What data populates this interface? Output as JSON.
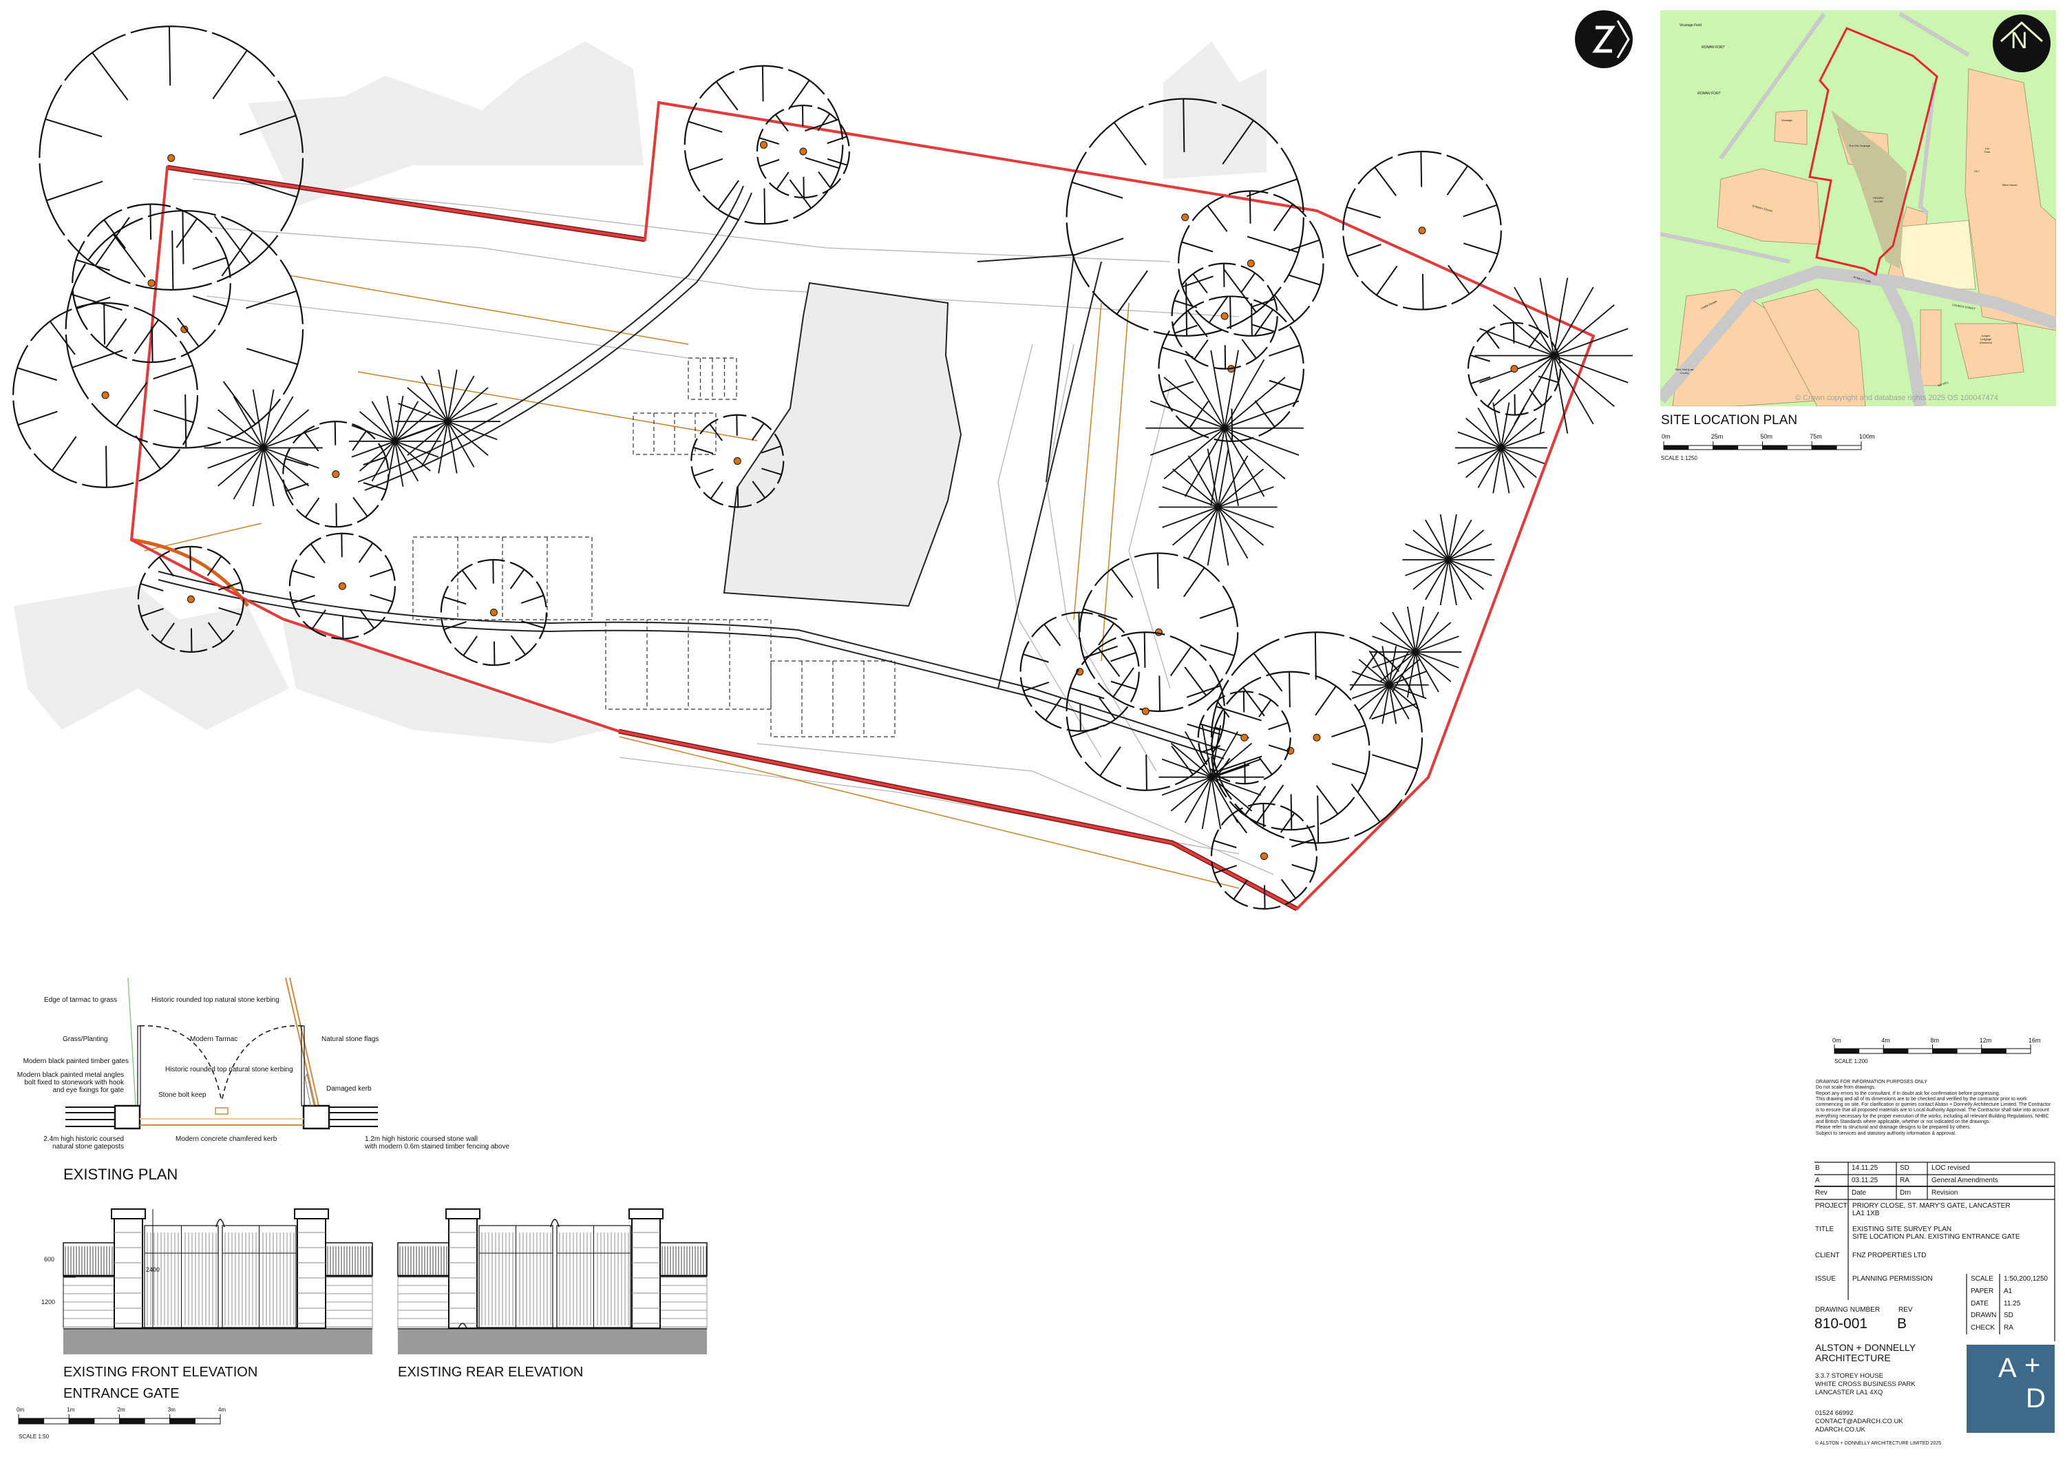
{
  "site_location_plan": {
    "title": "SITE LOCATION PLAN",
    "scale_label": "SCALE  1:1250",
    "scale_ticks": [
      "0m",
      "25m",
      "50m",
      "75m",
      "100m"
    ],
    "copyright": "© Crown copyright and database rights 2025 OS 100047474",
    "north_label": "N",
    "map_labels": {
      "vicarage_field": "Vicarage Field",
      "roman_fort_1": "ROMAN FORT",
      "roman_fort_2": "ROMAN FORT",
      "vicarage": "Vicarage",
      "old_vicarage": "The Old Vicarage",
      "st_marys_church": "St Mary's Church",
      "priory_close": "PRIORY CLOSE",
      "car_park": "Car Park",
      "ulc": "ULC",
      "mitre_house": "Mitre House",
      "st_marys_gate": "St Mary's Gate",
      "castle_parade": "Castle Parade",
      "church_street": "CHURCH STREET",
      "judges_lodgings": "Judges' Lodgings (Museum)",
      "shire_hall": "Shire Hall (Law Courts)",
      "nip_hill": "NIP HILL"
    },
    "colors": {
      "grass": "#ccf5b0",
      "building": "#fcd3a6",
      "road": "#c9c9c9",
      "track": "#c8c49a",
      "boundary": "#e8262b"
    }
  },
  "survey_plan": {
    "north_label": "N",
    "colors": {
      "boundary": "#e23b3b",
      "wall": "#7a1a1a",
      "tree_center": "#d8730f",
      "level": "#c8832a",
      "building": "#ececec"
    }
  },
  "existing_plan": {
    "title": "EXISTING PLAN",
    "labels": {
      "edge_tarmac": "Edge of tarmac to grass",
      "kerbing_top": "Historic rounded top natural stone kerbing",
      "grass_planting": "Grass/Planting",
      "modern_tarmac": "Modern Tarmac",
      "stone_flags": "Natural stone flags",
      "timber_gates": "Modern black painted timber gates",
      "metal_angles": [
        "Modern black painted metal angles",
        "bolt fixed to stonework with hook",
        "and eye fixings for gate"
      ],
      "kerbing_mid": "Historic rounded top natural stone kerbing",
      "bolt_keep": "Stone bolt keep",
      "damaged_kerb": "Damaged kerb",
      "gateposts": [
        "2.4m high historic coursed",
        "natural stone gateposts"
      ],
      "concrete_kerb": "Modern concrete chamfered kerb",
      "stone_wall": [
        "1.2m high historic coursed stone wall",
        "with modern 0.6m stained timber fencing above"
      ]
    }
  },
  "elevations": {
    "front_title": "EXISTING FRONT ELEVATION",
    "subtitle": "ENTRANCE GATE",
    "rear_title": "EXISTING REAR ELEVATION",
    "dims": {
      "fence": "600",
      "wall": "1200",
      "post": "2400"
    },
    "scale_label": "SCALE  1:50",
    "scale_ticks": [
      "0m",
      "1m",
      "2m",
      "3m",
      "4m"
    ]
  },
  "title_block": {
    "scale_ticks": [
      "0m",
      "4m",
      "8m",
      "12m",
      "16m"
    ],
    "scale_label": "SCALE  1:200",
    "notes": [
      "DRAWING FOR INFORMATION PURPOSES ONLY",
      "Do not scale from drawings.",
      "Report any errors to the consultant. If in doubt ask for confirmation before progressing.",
      "This drawing and all of its dimensions are to be checked and verified by the contractor prior to work commencing on site. For clarification or queries contact Alston + Donnelly Architecture Limited. The Contractor is to ensure that all proposed materials are to Local Authority Approval. The Contractor shall take into account everything necessary for the proper execution of the works, including all relevant Building Regulations, NHBC and British Standards where applicable, whether or not indicated on the drawings.",
      "Please refer to structural and drainage designs to be prepared by others.",
      "Subject to services and statutory authority information & approval."
    ],
    "revisions": [
      {
        "rev": "B",
        "date": "14.11.25",
        "drn": "SD",
        "revision": "LOC revised"
      },
      {
        "rev": "A",
        "date": "03.11.25",
        "drn": "RA",
        "revision": "General Amendments"
      }
    ],
    "revision_headers": {
      "rev": "Rev",
      "date": "Date",
      "drn": "Drn",
      "revision": "Revision"
    },
    "project_label": "PROJECT",
    "project": [
      "PRIORY CLOSE, ST. MARY'S GATE, LANCASTER",
      "LA1 1XB"
    ],
    "title_label": "TITLE",
    "title": [
      "EXISTING SITE SURVEY PLAN",
      "SITE LOCATION PLAN. EXISTING ENTRANCE GATE"
    ],
    "client_label": "CLIENT",
    "client": "FNZ PROPERTIES LTD",
    "issue_label": "ISSUE",
    "issue": "PLANNING PERMISSION",
    "meta": [
      {
        "label": "SCALE",
        "value": "1:50,200,1250"
      },
      {
        "label": "PAPER",
        "value": "A1"
      },
      {
        "label": "DATE",
        "value": "11.25"
      },
      {
        "label": "DRAWN",
        "value": "SD"
      },
      {
        "label": "CHECK",
        "value": "RA"
      }
    ],
    "drawing_number_label": "DRAWING NUMBER",
    "drawing_number": "810-001",
    "rev_label": "REV",
    "rev": "B",
    "company": [
      "ALSTON + DONNELLY",
      "ARCHITECTURE"
    ],
    "address": [
      "3.3.7 STOREY HOUSE",
      "WHITE CROSS BUSINESS PARK",
      "LANCASTER LA1 4XQ"
    ],
    "contact": [
      "01524 66992",
      "CONTACT@ADARCH.CO.UK",
      "ADARCH.CO.UK"
    ],
    "copyright": "©   ALSTON + DONNELLY ARCHITECTURE LIMITED  2025",
    "logo": {
      "a": "A",
      "plus": "+",
      "d": "D",
      "color": "#3d6a8a"
    }
  }
}
